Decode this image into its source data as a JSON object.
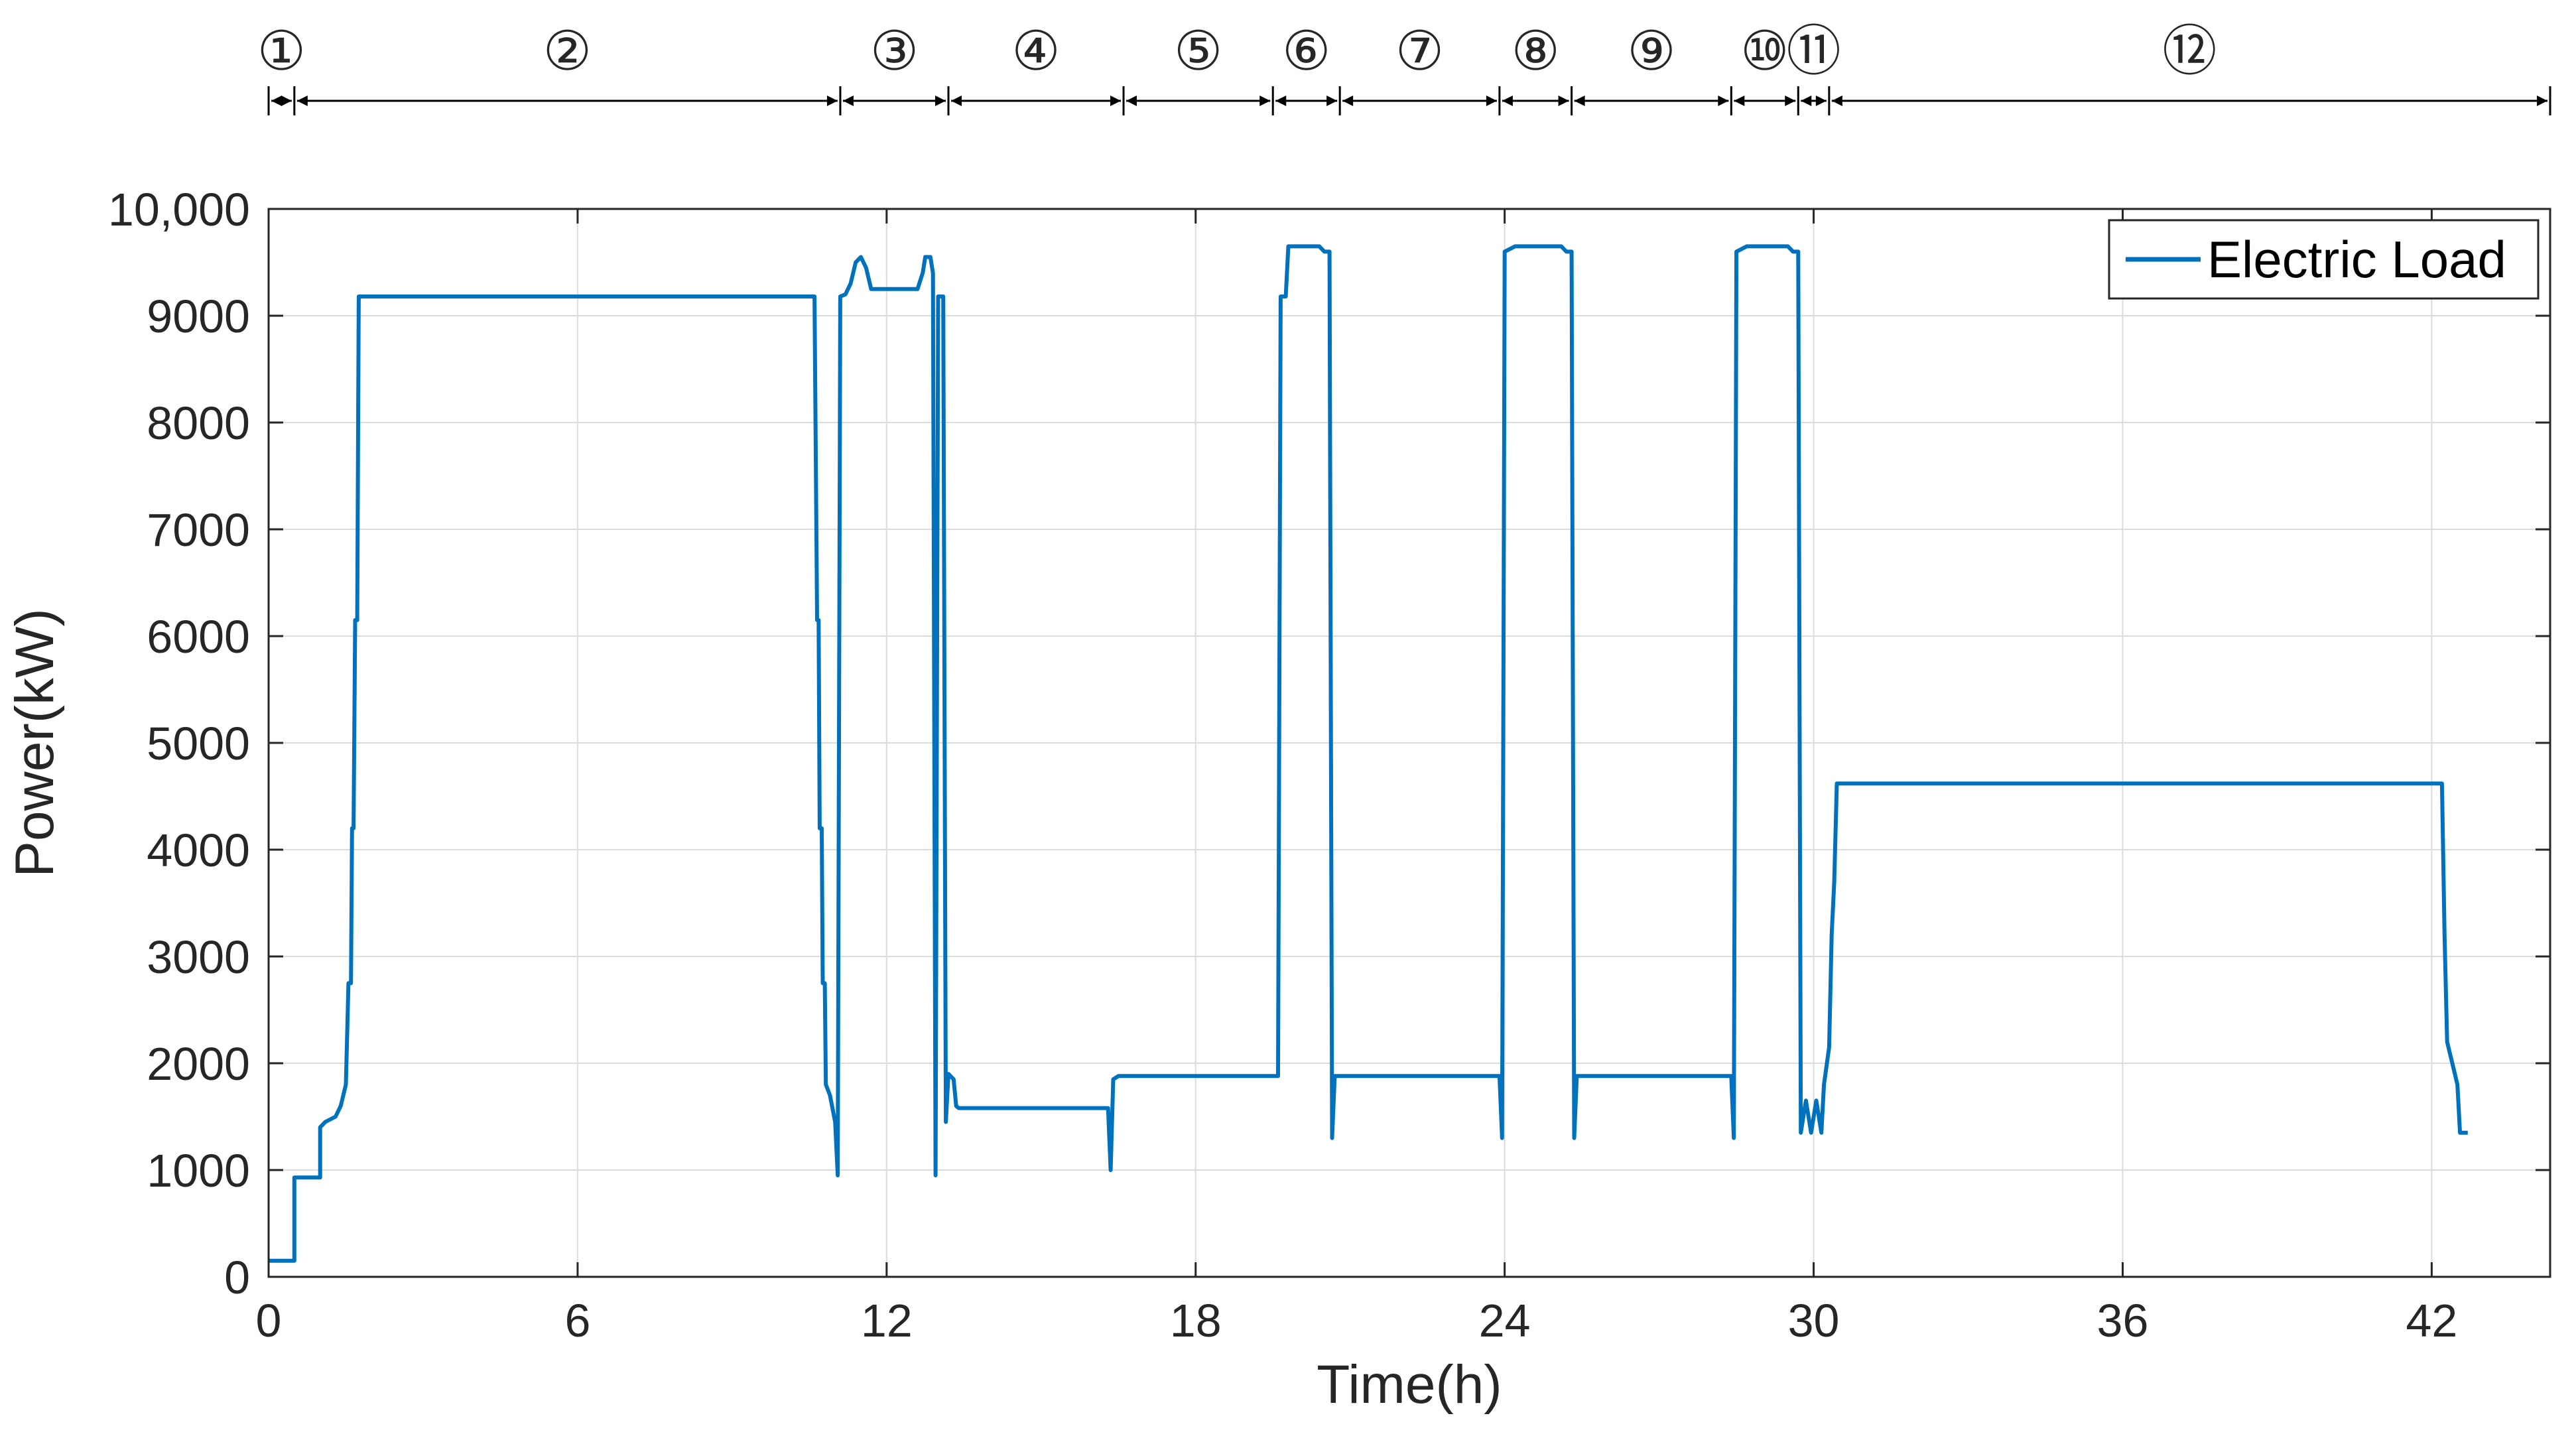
{
  "chart_data": {
    "type": "line",
    "xlabel": "Time(h)",
    "ylabel": "Power(kW)",
    "xlim": [
      0,
      44.3
    ],
    "ylim": [
      0,
      10000
    ],
    "grid": true,
    "legend_position": "top-right",
    "x_ticks": [
      0,
      6,
      12,
      18,
      24,
      30,
      36,
      42
    ],
    "x_tick_labels": [
      "0",
      "6",
      "12",
      "18",
      "24",
      "30",
      "36",
      "42"
    ],
    "y_ticks": [
      0,
      1000,
      2000,
      3000,
      4000,
      5000,
      6000,
      7000,
      8000,
      9000,
      10000
    ],
    "y_tick_labels": [
      "0",
      "1000",
      "2000",
      "3000",
      "4000",
      "5000",
      "6000",
      "7000",
      "8000",
      "9000",
      "10,000"
    ],
    "series": [
      {
        "name": "Electric Load",
        "color": "#0072BD",
        "points": [
          [
            0,
            150
          ],
          [
            0.5,
            150
          ],
          [
            0.5,
            930
          ],
          [
            1.0,
            930
          ],
          [
            1.0,
            1400
          ],
          [
            1.1,
            1450
          ],
          [
            1.3,
            1500
          ],
          [
            1.4,
            1600
          ],
          [
            1.5,
            1800
          ],
          [
            1.55,
            2750
          ],
          [
            1.6,
            2750
          ],
          [
            1.62,
            4200
          ],
          [
            1.65,
            4200
          ],
          [
            1.68,
            6150
          ],
          [
            1.72,
            6150
          ],
          [
            1.75,
            9180
          ],
          [
            10.6,
            9180
          ],
          [
            10.65,
            6150
          ],
          [
            10.68,
            6150
          ],
          [
            10.7,
            4200
          ],
          [
            10.74,
            4200
          ],
          [
            10.76,
            2750
          ],
          [
            10.8,
            2750
          ],
          [
            10.82,
            1800
          ],
          [
            10.9,
            1700
          ],
          [
            11.0,
            1450
          ],
          [
            11.05,
            950
          ],
          [
            11.1,
            9180
          ],
          [
            11.2,
            9200
          ],
          [
            11.3,
            9300
          ],
          [
            11.4,
            9500
          ],
          [
            11.5,
            9550
          ],
          [
            11.6,
            9450
          ],
          [
            11.7,
            9250
          ],
          [
            12.2,
            9250
          ],
          [
            12.6,
            9250
          ],
          [
            12.7,
            9400
          ],
          [
            12.75,
            9550
          ],
          [
            12.85,
            9550
          ],
          [
            12.9,
            9400
          ],
          [
            12.95,
            950
          ],
          [
            13.0,
            9180
          ],
          [
            13.1,
            9180
          ],
          [
            13.15,
            1450
          ],
          [
            13.2,
            1900
          ],
          [
            13.3,
            1850
          ],
          [
            13.35,
            1600
          ],
          [
            13.4,
            1580
          ],
          [
            16.3,
            1580
          ],
          [
            16.35,
            1000
          ],
          [
            16.4,
            1850
          ],
          [
            16.5,
            1880
          ],
          [
            19.6,
            1880
          ],
          [
            19.65,
            9180
          ],
          [
            19.75,
            9180
          ],
          [
            19.8,
            9650
          ],
          [
            20.4,
            9650
          ],
          [
            20.5,
            9600
          ],
          [
            20.6,
            9600
          ],
          [
            20.65,
            1300
          ],
          [
            20.7,
            1880
          ],
          [
            23.9,
            1880
          ],
          [
            23.95,
            1300
          ],
          [
            24.0,
            9600
          ],
          [
            24.2,
            9650
          ],
          [
            25.1,
            9650
          ],
          [
            25.2,
            9600
          ],
          [
            25.3,
            9600
          ],
          [
            25.35,
            1300
          ],
          [
            25.4,
            1880
          ],
          [
            28.4,
            1880
          ],
          [
            28.45,
            1300
          ],
          [
            28.5,
            9600
          ],
          [
            28.7,
            9650
          ],
          [
            29.5,
            9650
          ],
          [
            29.6,
            9600
          ],
          [
            29.7,
            9600
          ],
          [
            29.75,
            1350
          ],
          [
            29.85,
            1650
          ],
          [
            29.95,
            1350
          ],
          [
            30.05,
            1650
          ],
          [
            30.15,
            1350
          ],
          [
            30.2,
            1800
          ],
          [
            30.3,
            2150
          ],
          [
            30.35,
            3200
          ],
          [
            30.4,
            3700
          ],
          [
            30.45,
            4620
          ],
          [
            42.1,
            4620
          ],
          [
            42.2,
            4620
          ],
          [
            42.25,
            3200
          ],
          [
            42.3,
            2200
          ],
          [
            42.4,
            2000
          ],
          [
            42.5,
            1800
          ],
          [
            42.55,
            1350
          ],
          [
            42.7,
            1350
          ]
        ]
      }
    ],
    "phases": {
      "labels": [
        "①",
        "②",
        "③",
        "④",
        "⑤",
        "⑥",
        "⑦",
        "⑧",
        "⑨",
        "⑩",
        "⑪",
        "⑫"
      ],
      "boundaries": [
        0,
        0.5,
        11.1,
        13.2,
        16.6,
        19.5,
        20.8,
        23.9,
        25.3,
        28.4,
        29.7,
        30.3,
        44.3
      ]
    }
  }
}
